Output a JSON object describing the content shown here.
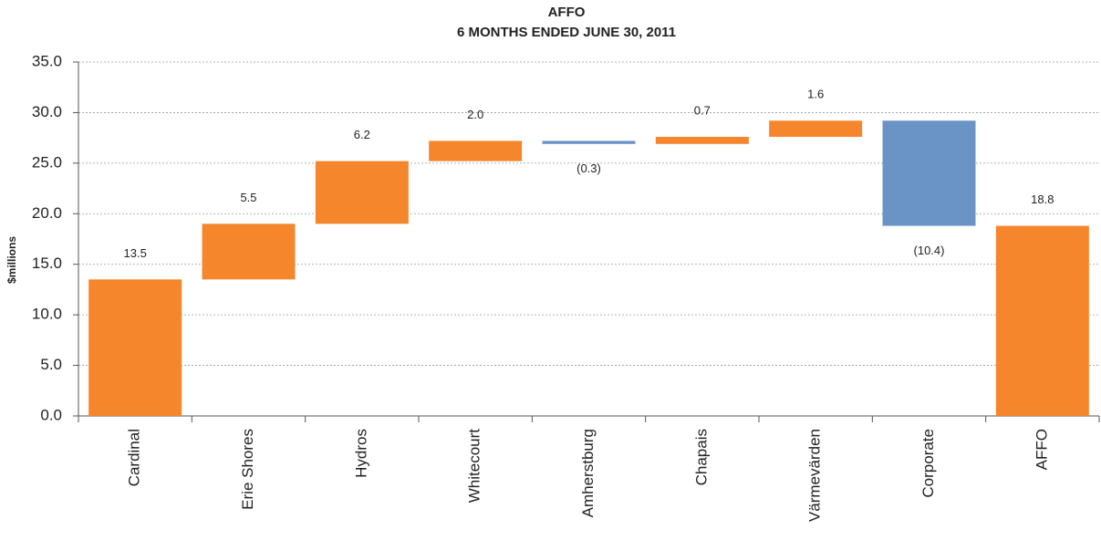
{
  "chart_data": {
    "type": "waterfall",
    "title": "AFFO",
    "subtitle": "6 MONTHS ENDED JUNE 30, 2011",
    "y_label": "$millions",
    "categories": [
      "Cardinal",
      "Erie Shores",
      "Hydros",
      "Whitecourt",
      "Amherstburg",
      "Chapais",
      "Värmevärden",
      "Corporate",
      "AFFO"
    ],
    "values": [
      13.5,
      5.5,
      6.2,
      2.0,
      -0.3,
      0.7,
      1.6,
      -10.4,
      18.8
    ],
    "value_labels": [
      "13.5",
      "5.5",
      "6.2",
      "2.0",
      "(0.3)",
      "0.7",
      "1.6",
      "(10.4)",
      "18.8"
    ],
    "last_is_total": true,
    "increase_color": "#f5862b",
    "decrease_color": "#6a93c6",
    "total_color": "#f5862b",
    "ylim": [
      0,
      35
    ],
    "yticks": [
      {
        "value": 0,
        "label": "0.0"
      },
      {
        "value": 5,
        "label": "5.0"
      },
      {
        "value": 10,
        "label": "10.0"
      },
      {
        "value": 15,
        "label": "15.0"
      },
      {
        "value": 20,
        "label": "20.0"
      },
      {
        "value": 25,
        "label": "25.0"
      },
      {
        "value": 30,
        "label": "30.0"
      },
      {
        "value": 35,
        "label": "35.0"
      }
    ],
    "grid": true
  }
}
